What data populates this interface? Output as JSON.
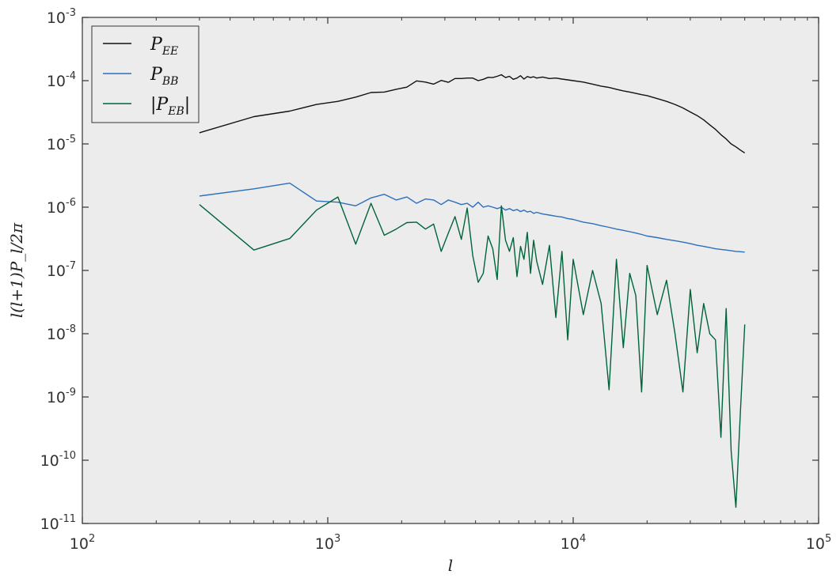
{
  "chart_data": {
    "type": "line",
    "title": "",
    "xlabel": "l",
    "ylabel": "l(l+1)P_l/2π",
    "xscale": "log",
    "yscale": "log",
    "xlim": [
      100,
      100000
    ],
    "ylim": [
      1e-11,
      0.001
    ],
    "x_ticks": [
      {
        "base": "10",
        "exp": "2"
      },
      {
        "base": "10",
        "exp": "3"
      },
      {
        "base": "10",
        "exp": "4"
      },
      {
        "base": "10",
        "exp": "5"
      }
    ],
    "y_ticks": [
      {
        "base": "10",
        "exp": "-11"
      },
      {
        "base": "10",
        "exp": "-10"
      },
      {
        "base": "10",
        "exp": "-9"
      },
      {
        "base": "10",
        "exp": "-8"
      },
      {
        "base": "10",
        "exp": "-7"
      },
      {
        "base": "10",
        "exp": "-6"
      },
      {
        "base": "10",
        "exp": "-5"
      },
      {
        "base": "10",
        "exp": "-4"
      },
      {
        "base": "10",
        "exp": "-3"
      }
    ],
    "grid": false,
    "legend_position": "top-left",
    "background": "#ececec",
    "series": [
      {
        "name": "P_EE",
        "legend_main": "P",
        "legend_sub": "EE",
        "legend_abs": false,
        "color": "#111111",
        "x": [
          300,
          500,
          700,
          900,
          1100,
          1300,
          1500,
          1700,
          1900,
          2100,
          2300,
          2500,
          2700,
          2900,
          3100,
          3300,
          3500,
          3700,
          3900,
          4100,
          4300,
          4500,
          4700,
          4900,
          5100,
          5300,
          5500,
          5700,
          5900,
          6100,
          6300,
          6500,
          6700,
          6900,
          7100,
          7500,
          8000,
          8500,
          9000,
          9500,
          10000,
          11000,
          12000,
          13000,
          14000,
          15000,
          16000,
          17000,
          18000,
          19000,
          20000,
          22000,
          24000,
          26000,
          28000,
          30000,
          32000,
          34000,
          36000,
          38000,
          40000,
          42000,
          44000,
          46000,
          48000,
          50000
        ],
        "y": [
          1.5e-05,
          2.7e-05,
          3.3e-05,
          4.2e-05,
          4.7e-05,
          5.5e-05,
          6.5e-05,
          6.6e-05,
          7.3e-05,
          7.9e-05,
          9.9e-05,
          9.5e-05,
          8.8e-05,
          0.000101,
          9.4e-05,
          0.000108,
          0.000108,
          0.00011,
          0.00011,
          0.0001,
          0.000105,
          0.000113,
          0.000112,
          0.000117,
          0.000124,
          0.000112,
          0.000117,
          0.000105,
          0.00011,
          0.00012,
          0.000106,
          0.000116,
          0.000112,
          0.000115,
          0.00011,
          0.000114,
          0.000108,
          0.00011,
          0.000106,
          0.000103,
          0.0001,
          9.5e-05,
          8.8e-05,
          8.2e-05,
          7.8e-05,
          7.3e-05,
          6.9e-05,
          6.6e-05,
          6.3e-05,
          6e-05,
          5.8e-05,
          5.2e-05,
          4.7e-05,
          4.2e-05,
          3.7e-05,
          3.2e-05,
          2.8e-05,
          2.4e-05,
          2e-05,
          1.7e-05,
          1.4e-05,
          1.2e-05,
          1e-05,
          9e-06,
          8e-06,
          7.2e-06
        ]
      },
      {
        "name": "P_BB",
        "legend_main": "P",
        "legend_sub": "BB",
        "legend_abs": false,
        "color": "#2c6fbb",
        "x": [
          300,
          500,
          700,
          900,
          1100,
          1300,
          1500,
          1700,
          1900,
          2100,
          2300,
          2500,
          2700,
          2900,
          3100,
          3300,
          3500,
          3700,
          3900,
          4100,
          4300,
          4500,
          4700,
          4900,
          5100,
          5300,
          5500,
          5700,
          5900,
          6100,
          6300,
          6500,
          6700,
          6900,
          7100,
          7500,
          8000,
          8500,
          9000,
          9500,
          10000,
          11000,
          12000,
          13000,
          14000,
          15000,
          16000,
          17000,
          18000,
          19000,
          20000,
          22000,
          24000,
          26000,
          28000,
          30000,
          32000,
          34000,
          36000,
          38000,
          40000,
          42000,
          44000,
          46000,
          48000,
          50000
        ],
        "y": [
          1.5e-06,
          1.95e-06,
          2.4e-06,
          1.25e-06,
          1.2e-06,
          1.05e-06,
          1.4e-06,
          1.6e-06,
          1.3e-06,
          1.45e-06,
          1.15e-06,
          1.35e-06,
          1.3e-06,
          1.1e-06,
          1.3e-06,
          1.2e-06,
          1.1e-06,
          1.15e-06,
          1e-06,
          1.2e-06,
          1e-06,
          1.05e-06,
          1e-06,
          9.5e-07,
          1e-06,
          9e-07,
          9.5e-07,
          8.8e-07,
          9.2e-07,
          8.5e-07,
          9e-07,
          8.4e-07,
          8.6e-07,
          8e-07,
          8.3e-07,
          7.8e-07,
          7.5e-07,
          7.2e-07,
          7e-07,
          6.6e-07,
          6.4e-07,
          5.8e-07,
          5.5e-07,
          5.1e-07,
          4.8e-07,
          4.5e-07,
          4.3e-07,
          4.1e-07,
          3.9e-07,
          3.7e-07,
          3.5e-07,
          3.3e-07,
          3.1e-07,
          2.95e-07,
          2.8e-07,
          2.65e-07,
          2.5e-07,
          2.4e-07,
          2.3e-07,
          2.2e-07,
          2.15e-07,
          2.1e-07,
          2.05e-07,
          2e-07,
          1.98e-07,
          1.95e-07
        ]
      },
      {
        "name": "|P_EB|",
        "legend_main": "P",
        "legend_sub": "EB",
        "legend_abs": true,
        "color": "#00643a",
        "x": [
          300,
          500,
          700,
          900,
          1100,
          1300,
          1500,
          1700,
          1900,
          2100,
          2300,
          2500,
          2700,
          2900,
          3100,
          3300,
          3500,
          3700,
          3900,
          4100,
          4300,
          4500,
          4700,
          4900,
          5100,
          5300,
          5500,
          5700,
          5900,
          6100,
          6300,
          6500,
          6700,
          6900,
          7100,
          7500,
          8000,
          8500,
          9000,
          9500,
          10000,
          11000,
          12000,
          13000,
          14000,
          15000,
          16000,
          17000,
          18000,
          19000,
          20000,
          22000,
          24000,
          26000,
          28000,
          30000,
          32000,
          34000,
          36000,
          38000,
          40000,
          42000,
          44000,
          46000,
          48000,
          50000
        ],
        "y": [
          1.1e-06,
          2.1e-07,
          3.2e-07,
          9e-07,
          1.45e-06,
          2.6e-07,
          1.15e-06,
          3.6e-07,
          4.5e-07,
          5.7e-07,
          5.8e-07,
          4.5e-07,
          5.4e-07,
          2e-07,
          3.9e-07,
          7.1e-07,
          3.1e-07,
          9.7e-07,
          1.7e-07,
          6.5e-08,
          9e-08,
          3.5e-07,
          2.2e-07,
          7.2e-08,
          1.05e-06,
          3e-07,
          2e-07,
          3.3e-07,
          8e-08,
          2.4e-07,
          1.5e-07,
          4e-07,
          9e-08,
          3e-07,
          1.4e-07,
          6e-08,
          2.5e-07,
          1.8e-08,
          2e-07,
          8e-09,
          1.5e-07,
          2e-08,
          1e-07,
          3e-08,
          1.3e-09,
          1.5e-07,
          6e-09,
          9e-08,
          4e-08,
          1.2e-09,
          1.2e-07,
          2e-08,
          7e-08,
          1e-08,
          1.2e-09,
          5e-08,
          5e-09,
          3e-08,
          1e-08,
          8e-09,
          2.3e-10,
          2.5e-08,
          1.4e-10,
          1.8e-11,
          5.8e-10,
          1.4e-08
        ]
      }
    ]
  }
}
